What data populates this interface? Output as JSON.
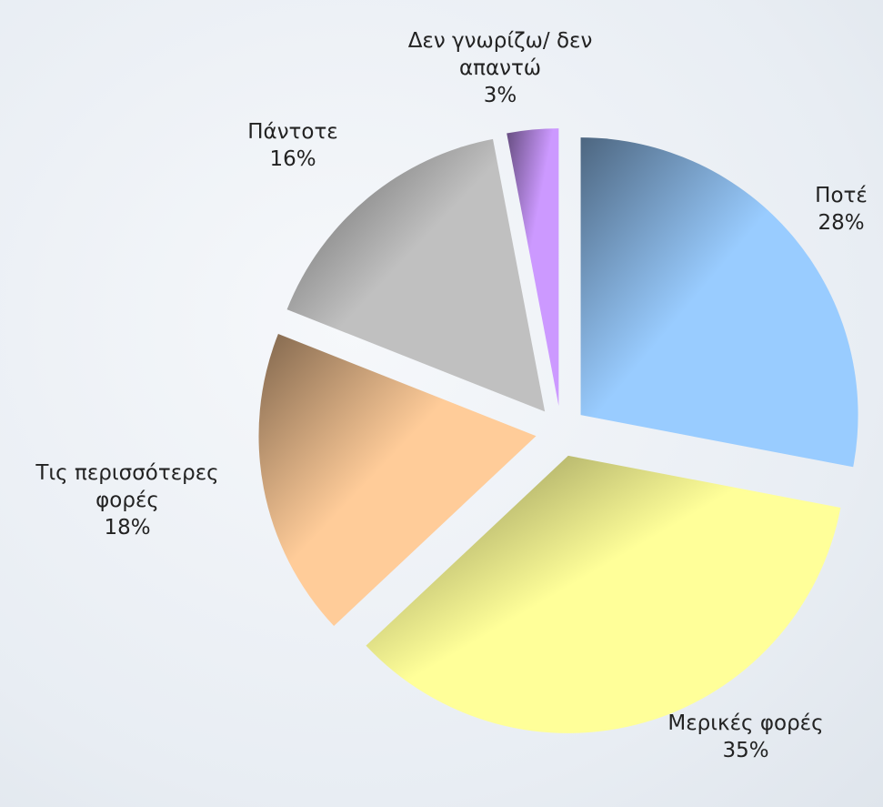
{
  "chart_data": {
    "type": "pie",
    "categories": [
      "Ποτέ",
      "Μερικές φορές",
      "Τις περισσότερες φορές",
      "Πάντοτε",
      "Δεν γνωρίζω/ δεν απαντώ"
    ],
    "values": [
      28,
      35,
      18,
      16,
      3
    ],
    "value_labels": [
      "28%",
      "35%",
      "18%",
      "16%",
      "3%"
    ],
    "colors": [
      "#99ccff",
      "#ffff99",
      "#ffcc99",
      "#c0c0c0",
      "#cc99ff"
    ]
  }
}
